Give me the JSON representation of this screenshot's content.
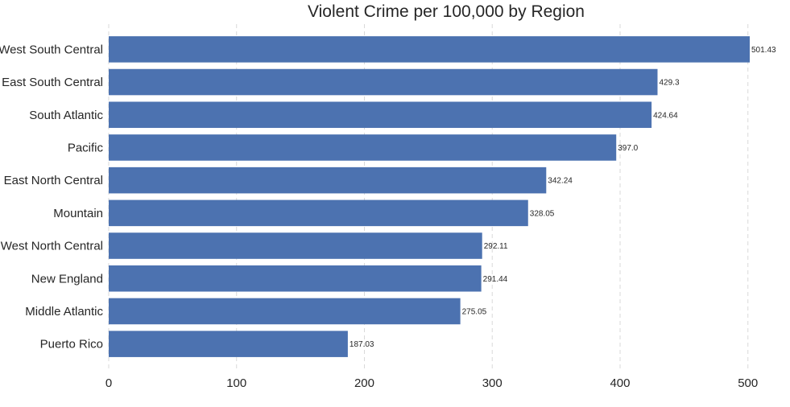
{
  "chart_data": {
    "type": "bar",
    "orientation": "horizontal",
    "title": "Violent Crime per 100,000 by Region",
    "xlabel": "",
    "ylabel": "",
    "categories": [
      "West South Central",
      "East South Central",
      "South Atlantic",
      "Pacific",
      "East North Central",
      "Mountain",
      "West North Central",
      "New England",
      "Middle Atlantic",
      "Puerto Rico"
    ],
    "values": [
      501.43,
      429.3,
      424.64,
      397.0,
      342.24,
      328.05,
      292.11,
      291.44,
      275.05,
      187.03
    ],
    "value_labels": [
      "501.43",
      "429.3",
      "424.64",
      "397.0",
      "342.24",
      "328.05",
      "292.11",
      "291.44",
      "275.05",
      "187.03"
    ],
    "xlim": [
      0,
      501.43
    ],
    "xticks": [
      0,
      100,
      200,
      300,
      400,
      500
    ],
    "xtick_labels": [
      "0",
      "100",
      "200",
      "300",
      "400",
      "500"
    ],
    "grid": "vertical dashed",
    "legend": "none",
    "bar_color": "#4c72b0"
  }
}
